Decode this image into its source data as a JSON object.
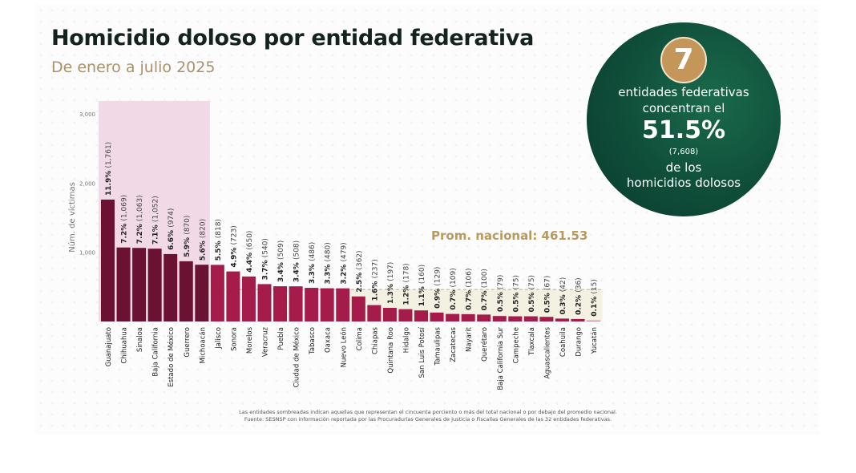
{
  "card": {
    "title": "Homicidio doloso por entidad federativa",
    "subtitle": "De enero a julio 2025"
  },
  "badge": {
    "number": "7",
    "line1": "entidades federativas",
    "line2": "concentran el",
    "percent": "51.5%",
    "count": "(7,608)",
    "line3": "de los",
    "line4": "homicidios dolosos"
  },
  "footnotes": [
    "Las entidades sombreadas indican aquellas que representan el cincuenta porciento o más del total nacional o por debajo del promedio nacional.",
    "Fuente: SESNSP con información reportada por las Procuradurías Generales de Justicia o Fiscalías Generales de las 32 entidades federativas."
  ],
  "colors": {
    "top_bars": "#6b1232",
    "other_bars": "#a51c4a",
    "last_bar": "#c98aa0",
    "top_shade": "#f1d9e5",
    "below_avg_shade": "#f3f1e2",
    "avg_text": "#b99a5e",
    "badge_bg": "#0f4d39",
    "badge_num_bg": "#c4965a"
  },
  "chart_data": {
    "type": "bar",
    "title": "Homicidio doloso por entidad federativa",
    "subtitle": "De enero a julio 2025",
    "xlabel": "",
    "ylabel": "Núm. de víctimas",
    "ylim": [
      0,
      3000
    ],
    "yticks": [
      1000,
      2000,
      3000
    ],
    "ytick_labels": [
      "1,000",
      "2,000",
      "3,000"
    ],
    "grid": false,
    "average": {
      "label": "Prom. nacional: 461.53",
      "value": 461.53
    },
    "highlight_top_count": 7,
    "categories": [
      "Guanajuato",
      "Chihuahua",
      "Sinaloa",
      "Baja California",
      "Estado de México",
      "Guerrero",
      "Michoacán",
      "Jalisco",
      "Sonora",
      "Morelos",
      "Veracruz",
      "Puebla",
      "Ciudad de México",
      "Tabasco",
      "Oaxaca",
      "Nuevo León",
      "Colima",
      "Chiapas",
      "Quintana Roo",
      "Hidalgo",
      "San Luis Potosí",
      "Tamaulipas",
      "Zacatecas",
      "Nayarit",
      "Querétaro",
      "Baja California Sur",
      "Campeche",
      "Tlaxcala",
      "Aguascalientes",
      "Coahuila",
      "Durango",
      "Yucatán"
    ],
    "values": [
      1761,
      1069,
      1063,
      1052,
      974,
      870,
      820,
      818,
      723,
      650,
      540,
      509,
      508,
      486,
      480,
      479,
      362,
      237,
      197,
      178,
      160,
      129,
      109,
      106,
      100,
      79,
      75,
      75,
      67,
      42,
      36,
      15
    ],
    "percents": [
      "11.9%",
      "7.2%",
      "7.2%",
      "7.1%",
      "6.6%",
      "5.9%",
      "5.6%",
      "5.5%",
      "4.9%",
      "4.4%",
      "3.7%",
      "3.4%",
      "3.4%",
      "3.3%",
      "3.3%",
      "3.2%",
      "2.5%",
      "1.6%",
      "1.3%",
      "1.2%",
      "1.1%",
      "0.9%",
      "0.7%",
      "0.7%",
      "0.7%",
      "0.5%",
      "0.5%",
      "0.5%",
      "0.5%",
      "0.3%",
      "0.2%",
      "0.1%"
    ],
    "value_labels": [
      "(1,761)",
      "(1,069)",
      "(1,063)",
      "(1,052)",
      "(974)",
      "(870)",
      "(820)",
      "(818)",
      "(723)",
      "(650)",
      "(540)",
      "(509)",
      "(508)",
      "(486)",
      "(480)",
      "(479)",
      "(362)",
      "(237)",
      "(197)",
      "(178)",
      "(160)",
      "(129)",
      "(109)",
      "(106)",
      "(100)",
      "(79)",
      "(75)",
      "(75)",
      "(67)",
      "(42)",
      "(36)",
      "(15)"
    ]
  }
}
